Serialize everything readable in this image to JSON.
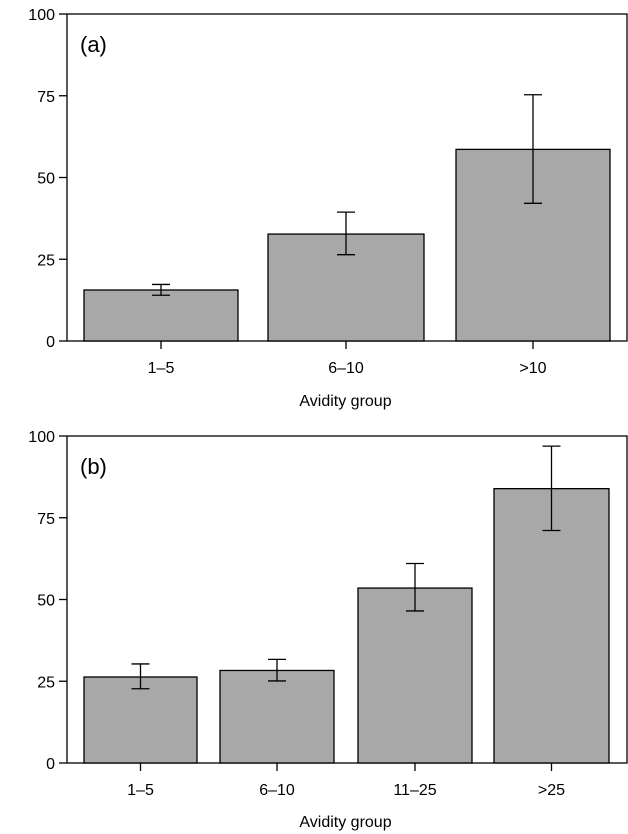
{
  "chart_data": [
    {
      "type": "bar",
      "panel_label": "(a)",
      "xlabel": "Avidity group",
      "ylabel": "",
      "ylim": [
        0,
        100
      ],
      "yticks": [
        "0",
        "25",
        "50",
        "75",
        "100"
      ],
      "categories": [
        "1–5",
        "6–10",
        ">10"
      ],
      "values": [
        15.6,
        32.7,
        58.6
      ],
      "error_low": [
        14.0,
        26.4,
        42.1
      ],
      "error_high": [
        17.3,
        39.4,
        75.3
      ],
      "bar_color": "#a8a8a8"
    },
    {
      "type": "bar",
      "panel_label": "(b)",
      "xlabel": "Avidity group",
      "ylabel": "",
      "ylim": [
        0,
        100
      ],
      "yticks": [
        "0",
        "25",
        "50",
        "75",
        "100"
      ],
      "categories": [
        "1–5",
        "6–10",
        "11–25",
        ">25"
      ],
      "values": [
        26.3,
        28.3,
        53.5,
        83.9
      ],
      "error_low": [
        22.7,
        25.1,
        46.5,
        71.1
      ],
      "error_high": [
        30.3,
        31.7,
        61.0,
        96.9
      ],
      "bar_color": "#a8a8a8"
    }
  ]
}
